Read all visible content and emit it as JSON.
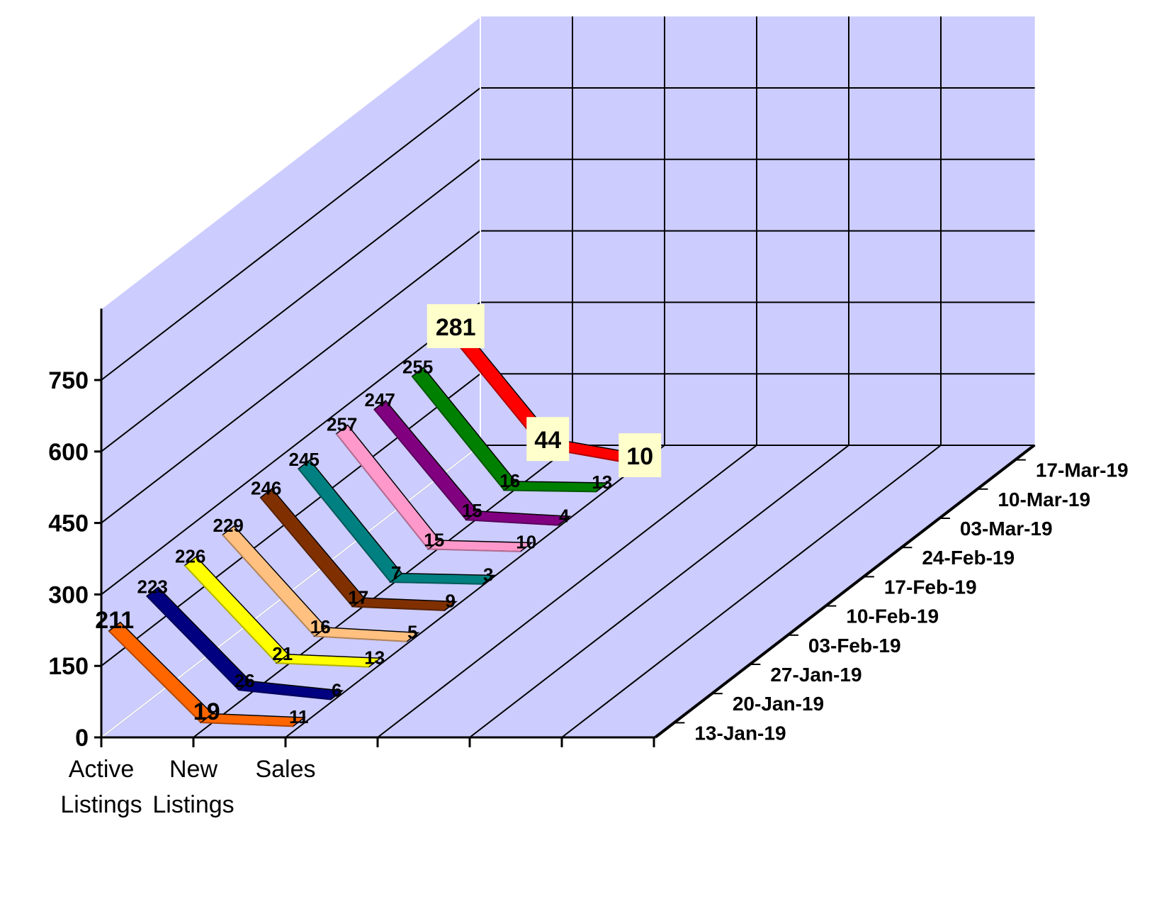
{
  "chart_data": {
    "type": "line",
    "subtype": "3d-ribbon",
    "title": "",
    "categories": [
      "Active Listings",
      "New Listings",
      "Sales"
    ],
    "category_label_lines": [
      [
        "Active",
        "Listings"
      ],
      [
        "New",
        "Listings"
      ],
      [
        "Sales",
        ""
      ]
    ],
    "ylim": [
      0,
      900
    ],
    "y_ticks": [
      0,
      150,
      300,
      450,
      600,
      750
    ],
    "grid": true,
    "series": [
      {
        "name": "13-Jan-19",
        "color": "#ff6600",
        "values": [
          211,
          19,
          11
        ]
      },
      {
        "name": "20-Jan-19",
        "color": "#000080",
        "values": [
          223,
          26,
          6
        ]
      },
      {
        "name": "27-Jan-19",
        "color": "#ffff00",
        "values": [
          226,
          21,
          13
        ]
      },
      {
        "name": "03-Feb-19",
        "color": "#ffc080",
        "values": [
          229,
          16,
          5
        ]
      },
      {
        "name": "10-Feb-19",
        "color": "#803000",
        "values": [
          246,
          17,
          9
        ]
      },
      {
        "name": "17-Feb-19",
        "color": "#008080",
        "values": [
          245,
          7,
          3
        ]
      },
      {
        "name": "24-Feb-19",
        "color": "#ff99cc",
        "values": [
          257,
          15,
          10
        ]
      },
      {
        "name": "03-Mar-19",
        "color": "#800080",
        "values": [
          247,
          15,
          4
        ]
      },
      {
        "name": "10-Mar-19",
        "color": "#008000",
        "values": [
          255,
          16,
          13
        ]
      },
      {
        "name": "17-Mar-19",
        "color": "#ff0000",
        "values": [
          281,
          44,
          10
        ]
      }
    ],
    "highlighted_series": "17-Mar-19"
  },
  "colors": {
    "plot_background": "#ccccff",
    "grid": "#000000",
    "label_box": "#ffffcc"
  }
}
